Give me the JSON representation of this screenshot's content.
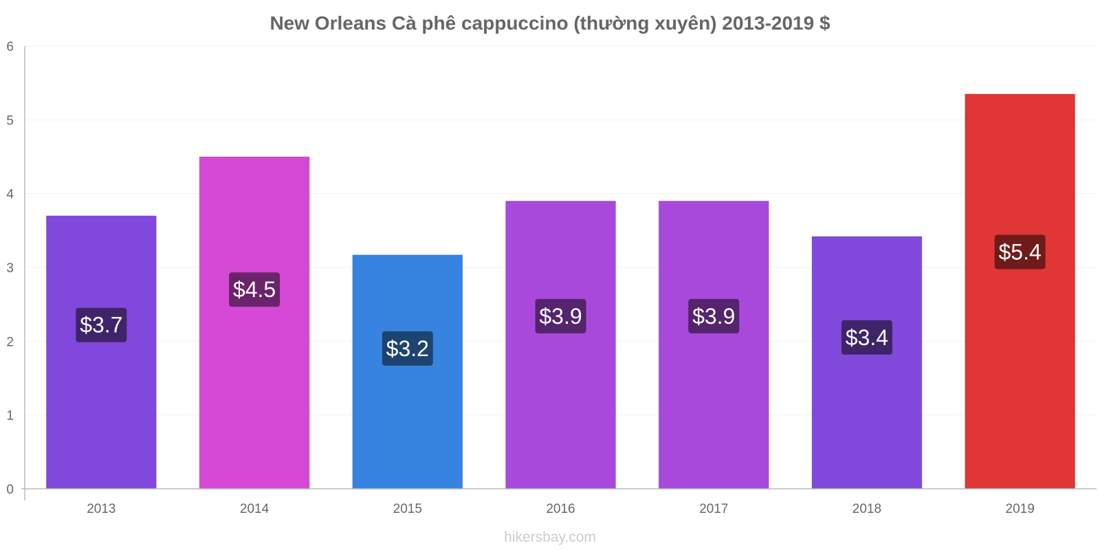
{
  "chart_data": {
    "type": "bar",
    "title": "New Orleans Cà phê cappuccino (thường xuyên) 2013-2019 $",
    "xlabel": "",
    "ylabel": "",
    "categories": [
      "2013",
      "2014",
      "2015",
      "2016",
      "2017",
      "2018",
      "2019"
    ],
    "values": [
      3.7,
      4.5,
      3.17,
      3.9,
      3.9,
      3.42,
      5.35
    ],
    "data_labels": [
      "$3.7",
      "$4.5",
      "$3.2",
      "$3.9",
      "$3.9",
      "$3.4",
      "$5.4"
    ],
    "ylim": [
      0,
      6
    ],
    "yticks": [
      "0",
      "1",
      "2",
      "3",
      "4",
      "5",
      "6"
    ],
    "grid": true,
    "bar_colors": [
      "#8049DB",
      "#D649D6",
      "#3784E0",
      "#A949DB",
      "#A949DB",
      "#8049DB",
      "#E03636"
    ],
    "label_colors": [
      "#3F2469",
      "#6B246B",
      "#1D4470",
      "#54246D",
      "#54246D",
      "#3F2469",
      "#701B1B"
    ]
  },
  "watermark": "hikersbay.com"
}
